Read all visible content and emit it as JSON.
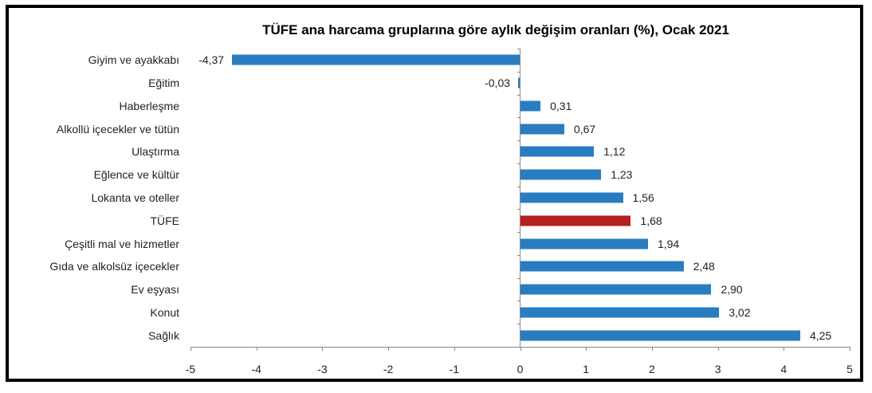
{
  "chart_data": {
    "type": "bar",
    "orientation": "horizontal",
    "title": "TÜFE ana harcama gruplarına göre aylık değişim oranları (%), Ocak 2021",
    "xlabel": "",
    "ylabel": "",
    "xlim": [
      -5,
      5
    ],
    "xticks": [
      "-5",
      "-4",
      "-3",
      "-2",
      "-1",
      "0",
      "1",
      "2",
      "3",
      "4",
      "5"
    ],
    "grid": false,
    "legend": null,
    "categories": [
      "Giyim ve ayakkabı",
      "Eğitim",
      "Haberleşme",
      "Alkollü içecekler ve tütün",
      "Ulaştırma",
      "Eğlence ve kültür",
      "Lokanta ve oteller",
      "TÜFE",
      "Çeşitli mal ve hizmetler",
      "Gıda ve alkolsüz içecekler",
      "Ev eşyası",
      "Konut",
      "Sağlık"
    ],
    "values": [
      -4.37,
      -0.03,
      0.31,
      0.67,
      1.12,
      1.23,
      1.56,
      1.68,
      1.94,
      2.48,
      2.9,
      3.02,
      4.25
    ],
    "value_labels": [
      "-4,37",
      "-0,03",
      "0,31",
      "0,67",
      "1,12",
      "1,23",
      "1,56",
      "1,68",
      "1,94",
      "2,48",
      "2,90",
      "3,02",
      "4,25"
    ],
    "colors": {
      "default": "#2a7cc0",
      "highlight": "#b51f1f",
      "highlight_category": "TÜFE"
    }
  }
}
